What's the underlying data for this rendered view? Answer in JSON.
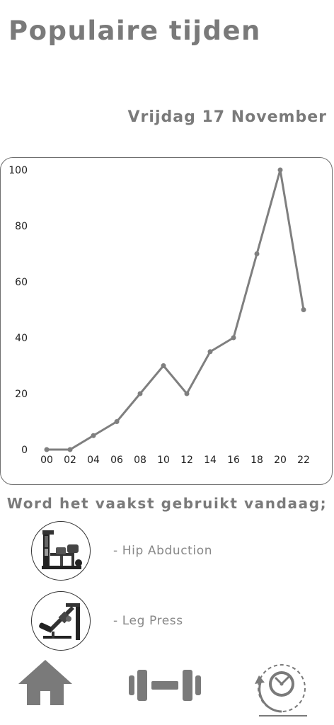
{
  "header": {
    "title": "Populaire tijden"
  },
  "chart": {
    "date_label": "Vrijdag 17 November"
  },
  "chart_data": {
    "type": "line",
    "x": [
      "00",
      "02",
      "04",
      "06",
      "08",
      "10",
      "12",
      "14",
      "16",
      "18",
      "20",
      "22"
    ],
    "values": [
      0,
      0,
      5,
      10,
      20,
      30,
      20,
      35,
      40,
      70,
      100,
      50
    ],
    "yticks": [
      "0",
      "20",
      "40",
      "60",
      "80",
      "100"
    ],
    "ylim": [
      0,
      100
    ],
    "grid": false,
    "line_color": "#7f7f7f"
  },
  "popular": {
    "heading": "Word het vaakst gebruikt vandaag;",
    "items": [
      {
        "label": "- Hip Abduction",
        "icon": "hip-abduction-machine-icon"
      },
      {
        "label": "- Leg Press",
        "icon": "leg-press-machine-icon"
      }
    ]
  },
  "nav": {
    "items": [
      {
        "icon": "home-icon"
      },
      {
        "icon": "dumbbell-icon"
      },
      {
        "icon": "history-clock-icon",
        "active": true
      }
    ],
    "icon_color": "#7a7a7a"
  }
}
